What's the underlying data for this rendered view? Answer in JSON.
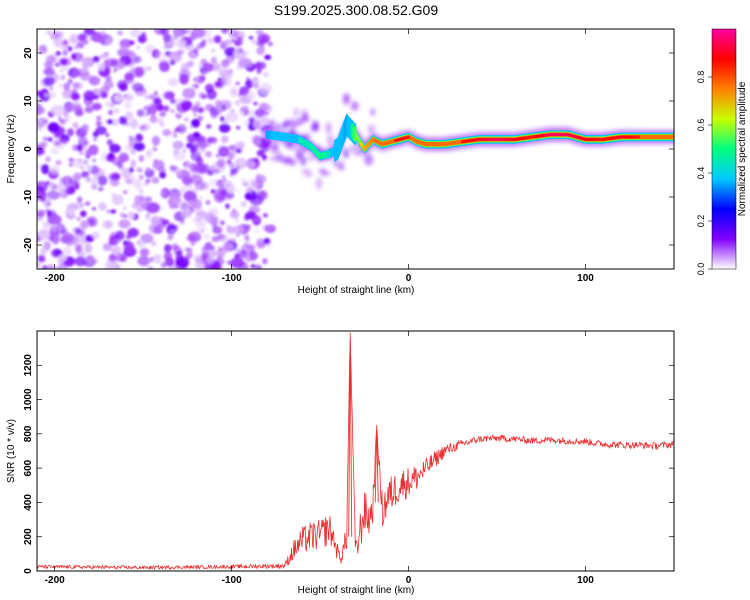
{
  "title": "S199.2025.300.08.52.G09",
  "chart_data": [
    {
      "type": "heatmap",
      "name": "spectrogram",
      "xlabel": "Height of straight line (km)",
      "ylabel": "Frequency (Hz)",
      "xlim": [
        -210,
        150
      ],
      "ylim": [
        -25,
        25
      ],
      "xticks": [
        -200,
        -100,
        0,
        100
      ],
      "xtick_labels": [
        "-200",
        "-100",
        "0",
        "100"
      ],
      "yticks": [
        -20,
        -10,
        0,
        10,
        20
      ],
      "ytick_labels": [
        "-20",
        "-10",
        "0",
        "10",
        "20"
      ],
      "noise_region_x": [
        -210,
        -78
      ],
      "ridge": {
        "x": [
          -80,
          -70,
          -62,
          -55,
          -50,
          -45,
          -40,
          -35,
          -30,
          -25,
          -20,
          -15,
          -10,
          -5,
          0,
          5,
          10,
          20,
          30,
          40,
          50,
          60,
          70,
          80,
          90,
          100,
          110,
          120,
          130,
          140,
          150
        ],
        "freq": [
          3,
          2.5,
          2,
          0.5,
          -1.5,
          -1,
          0,
          5,
          3,
          0,
          2,
          1,
          1.5,
          2,
          2.5,
          1.5,
          1,
          1,
          1.5,
          2,
          2,
          2,
          2.5,
          3,
          3,
          2,
          2,
          2.5,
          2.5,
          2.5,
          2.5
        ],
        "amplitude": [
          0.35,
          0.4,
          0.45,
          0.45,
          0.5,
          0.45,
          0.4,
          0.35,
          0.55,
          0.7,
          0.75,
          0.85,
          0.8,
          0.9,
          0.85,
          0.8,
          0.8,
          0.8,
          0.85,
          0.9,
          0.95,
          0.9,
          0.85,
          0.95,
          0.95,
          0.9,
          0.85,
          0.9,
          0.85,
          0.8,
          0.8
        ]
      },
      "colorbar": {
        "label": "Normalized spectral amplitude",
        "range": [
          0,
          1
        ],
        "ticks": [
          0.0,
          0.2,
          0.4,
          0.6,
          0.8
        ],
        "tick_labels": [
          "0.0",
          "0.2",
          "0.4",
          "0.6",
          "0.8"
        ],
        "colors": [
          "#ffffff",
          "#8000ff",
          "#0000ff",
          "#00c8ff",
          "#00ff80",
          "#c8ff00",
          "#ff8000",
          "#ff0000",
          "#ff00a0"
        ]
      }
    },
    {
      "type": "line",
      "name": "snr",
      "xlabel": "Height of straight line (km)",
      "ylabel": "SNR (10 * v/v)",
      "xlim": [
        -210,
        150
      ],
      "ylim": [
        0,
        1400
      ],
      "xticks": [
        -200,
        -100,
        0,
        100
      ],
      "xtick_labels": [
        "-200",
        "-100",
        "0",
        "100"
      ],
      "yticks": [
        0,
        200,
        400,
        600,
        800,
        1000,
        1200
      ],
      "ytick_labels": [
        "0",
        "200",
        "400",
        "600",
        "800",
        "1000",
        "1200"
      ],
      "line_color": "#e83030",
      "x": [
        -210,
        -150,
        -100,
        -70,
        -65,
        -60,
        -55,
        -50,
        -45,
        -42,
        -40,
        -38,
        -35,
        -33,
        -30,
        -28,
        -25,
        -22,
        -20,
        -18,
        -15,
        -12,
        -10,
        -5,
        0,
        5,
        10,
        15,
        20,
        25,
        30,
        40,
        50,
        60,
        70,
        80,
        90,
        100,
        110,
        120,
        130,
        140,
        150
      ],
      "y": [
        25,
        20,
        25,
        30,
        120,
        180,
        200,
        210,
        250,
        180,
        100,
        80,
        200,
        1390,
        100,
        200,
        350,
        300,
        400,
        850,
        350,
        420,
        450,
        500,
        520,
        550,
        600,
        650,
        700,
        720,
        740,
        770,
        775,
        770,
        760,
        765,
        760,
        755,
        740,
        735,
        735,
        730,
        740
      ],
      "spread": [
        10,
        10,
        10,
        15,
        60,
        80,
        90,
        90,
        100,
        60,
        50,
        40,
        80,
        0,
        60,
        120,
        120,
        120,
        120,
        0,
        120,
        120,
        110,
        100,
        90,
        80,
        60,
        50,
        40,
        30,
        25,
        20,
        20,
        20,
        20,
        20,
        20,
        20,
        20,
        20,
        20,
        20,
        20
      ]
    }
  ]
}
